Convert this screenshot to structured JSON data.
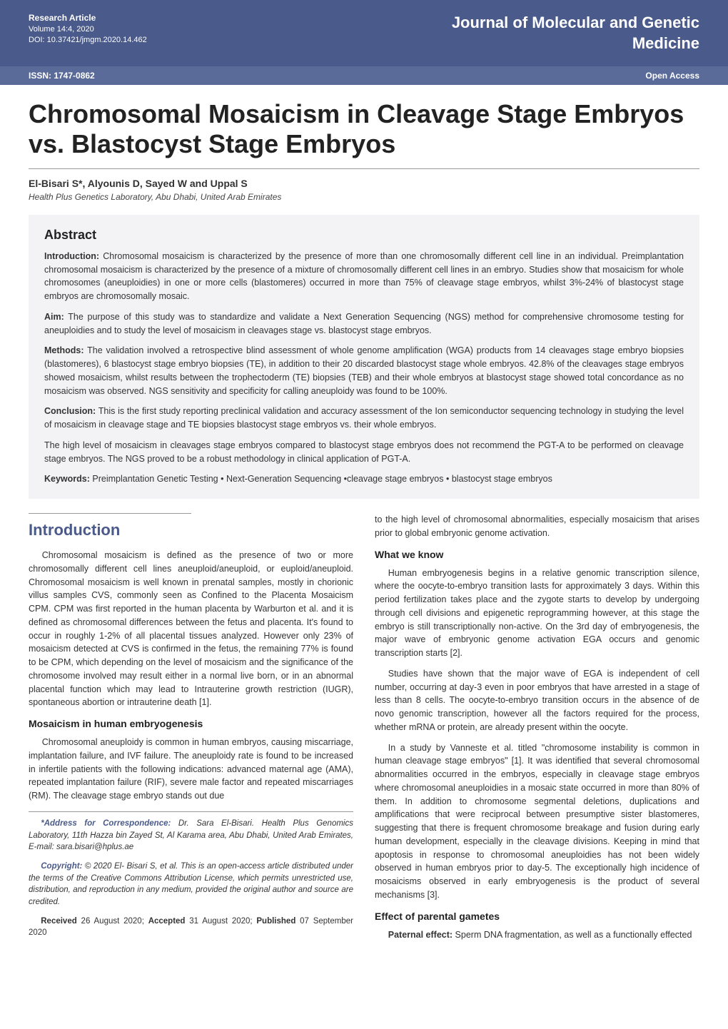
{
  "colors": {
    "header_bg": "#4a5a8a",
    "subbar_bg": "#5a6b9a",
    "heading_color": "#4a5a8a",
    "abstract_bg": "#f3f3f5",
    "text_color": "#333333",
    "white": "#ffffff"
  },
  "header": {
    "article_type": "Research Article",
    "volume": "Volume 14:4, 2020",
    "doi": "DOI: 10.37421/jmgm.2020.14.462",
    "journal_line1": "Journal of Molecular and Genetic",
    "journal_line2": "Medicine",
    "issn": "ISSN: 1747-0862",
    "access": "Open Access"
  },
  "title": "Chromosomal Mosaicism in Cleavage Stage Embryos vs. Blastocyst Stage Embryos",
  "authors": "El-Bisari S*, Alyounis D, Sayed W and Uppal S",
  "affil": "Health Plus Genetics Laboratory, Abu Dhabi, United Arab Emirates",
  "abstract": {
    "heading": "Abstract",
    "intro_label": "Introduction:",
    "intro": " Chromosomal mosaicism is characterized by the presence of more than one chromosomally different cell line in an individual. Preimplantation chromosomal mosaicism is characterized by the presence of a mixture of chromosomally different cell lines in an embryo. Studies show that mosaicism for whole chromosomes (aneuploidies) in one or more cells (blastomeres) occurred in more than 75% of cleavage stage embryos, whilst 3%-24% of blastocyst stage embryos are chromosomally mosaic.",
    "aim_label": "Aim:",
    "aim": " The purpose of this study was to standardize and validate a Next Generation Sequencing (NGS) method for comprehensive chromosome testing for aneuploidies and to study the level of mosaicism in cleavages stage vs. blastocyst stage embryos.",
    "methods_label": "Methods:",
    "methods": " The validation involved a retrospective blind assessment of whole genome amplification (WGA) products from 14 cleavages stage embryo biopsies (blastomeres), 6 blastocyst stage embryo biopsies (TE), in addition to their 20 discarded blastocyst stage whole embryos. 42.8% of the cleavages stage embryos showed mosaicism, whilst results between the trophectoderm (TE) biopsies (TEB) and their whole embryos at blastocyst stage showed total concordance as no mosaicism was observed. NGS sensitivity and specificity for calling aneuploidy was found to be 100%.",
    "conclusion_label": "Conclusion:",
    "conclusion": " This is the first study reporting preclinical validation and accuracy assessment of the Ion semiconductor sequencing technology in studying the level of mosaicism in cleavage stage and TE biopsies blastocyst stage embryos vs. their whole embryos.",
    "conclusion2": "The high level of mosaicism in cleavages stage embryos compared to blastocyst stage embryos does not recommend the PGT-A to be performed on cleavage stage embryos. The NGS proved to be a robust methodology in clinical application of PGT-A.",
    "keywords_label": "Keywords:",
    "keywords": " Preimplantation Genetic Testing • Next-Generation Sequencing •cleavage stage embryos • blastocyst stage embryos"
  },
  "body": {
    "intro_heading": "Introduction",
    "p1": "Chromosomal mosaicism is defined as the presence of two or more chromosomally different cell lines aneuploid/aneuploid, or euploid/aneuploid. Chromosomal mosaicism is well known in prenatal samples, mostly in chorionic villus samples CVS, commonly seen as Confined to the Placenta Mosaicism CPM. CPM was first reported in the human placenta by Warburton et al. and it is defined as chromosomal differences between the fetus and placenta. It's found to occur in roughly 1-2% of all placental tissues analyzed. However only 23% of mosaicism detected at CVS is confirmed in the fetus, the remaining 77% is found to be CPM, which depending on the level of mosaicism and the significance of the chromosome involved may result either in a normal live born, or in an abnormal placental function which may lead to Intrauterine growth restriction (IUGR), spontaneous abortion or intrauterine death [1].",
    "h_mosaicism": "Mosaicism in human embryogenesis",
    "p2": "Chromosomal aneuploidy is common in human embryos, causing miscarriage, implantation failure, and IVF failure. The aneuploidy rate is found to be increased in infertile patients with the following indications: advanced maternal age (AMA), repeated implantation failure (RIF), severe male factor and repeated miscarriages (RM). The cleavage stage embryo stands out due",
    "corr_label": "*Address for Correspondence:",
    "corr": " Dr. Sara El-Bisari. Health Plus Genomics Laboratory, 11th Hazza bin Zayed St, Al Karama area, Abu Dhabi, United Arab Emirates, E-mail: sara.bisari@hplus.ae",
    "copyright_label": "Copyright:",
    "copyright": " © 2020 El- Bisari S, et al. This is an open-access article distributed under the terms of the Creative Commons Attribution License, which permits unrestricted use, distribution, and reproduction in any medium, provided the original author and source are credited.",
    "rec_received_label": "Received",
    "rec_received": " 26 August 2020; ",
    "rec_accepted_label": "Accepted",
    "rec_accepted": " 31 August 2020; ",
    "rec_published_label": "Published",
    "rec_published": " 07 September 2020",
    "p3": "to the high level of chromosomal abnormalities, especially mosaicism that arises prior to global embryonic genome activation.",
    "h_whatweknow": "What we know",
    "p4": "Human embryogenesis begins in a relative genomic transcription silence, where the oocyte-to-embryo transition lasts for approximately 3 days. Within this period fertilization takes place and the zygote starts to develop by undergoing through cell divisions and epigenetic reprogramming however, at this stage the embryo is still transcriptionally non-active. On the 3rd day of embryogenesis, the major wave of embryonic genome activation EGA occurs and genomic transcription starts [2].",
    "p5": "Studies have shown that the major wave of EGA is independent of cell number, occurring at day-3 even in poor embryos that have arrested in a stage of less than 8 cells. The oocyte-to-embryo transition occurs in the absence of de novo genomic transcription, however all the factors required for the process, whether mRNA or protein, are already present within the oocyte.",
    "p6": "In a study by Vanneste et al. titled \"chromosome instability is common in human cleavage stage embryos\" [1]. It was identified that several chromosomal abnormalities occurred in the embryos, especially in cleavage stage embryos where chromosomal aneuploidies in a mosaic state occurred in more than 80% of them. In addition to chromosome segmental deletions, duplications and amplifications that were reciprocal between presumptive sister blastomeres, suggesting that there is frequent chromosome breakage and fusion during early human development, especially in the cleavage divisions. Keeping in mind that apoptosis in response to chromosomal aneuploidies has not been widely observed in human embryos prior to day-5. The exceptionally high incidence of mosaicisms observed in early embryogenesis is the product of several mechanisms [3].",
    "h_effect": "Effect of parental gametes",
    "p7_label": "Paternal effect:",
    "p7": " Sperm DNA fragmentation, as well as a functionally effected"
  }
}
